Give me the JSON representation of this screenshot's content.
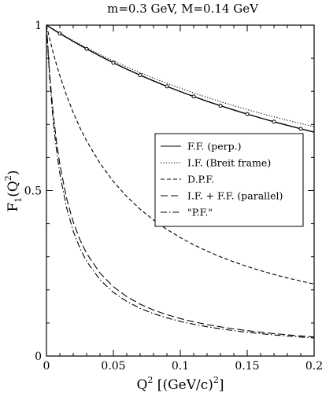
{
  "chart_data": {
    "type": "line",
    "title": "m=0.3 GeV, M=0.14 GeV",
    "xlabel_main": "Q",
    "xlabel_sup": "2",
    "xlabel_rest": " [(GeV/c)",
    "xlabel_sup2": "2",
    "xlabel_end": "]",
    "ylabel_main": "F",
    "ylabel_sub": "1",
    "ylabel_paren_open": "(Q",
    "ylabel_sup": "2",
    "ylabel_paren_close": ")",
    "xlim": [
      0,
      0.2
    ],
    "ylim": [
      0,
      1
    ],
    "x_ticks": [
      {
        "value": 0,
        "label": "0"
      },
      {
        "value": 0.05,
        "label": "0.05"
      },
      {
        "value": 0.1,
        "label": "0.1"
      },
      {
        "value": 0.15,
        "label": "0.15"
      },
      {
        "value": 0.2,
        "label": "0.2"
      }
    ],
    "y_ticks": [
      {
        "value": 0,
        "label": "0"
      },
      {
        "value": 0.5,
        "label": "0.5"
      },
      {
        "value": 1,
        "label": "1"
      }
    ],
    "legend_position": "right-middle",
    "grid": false,
    "x": [
      0,
      0.0025,
      0.005,
      0.0075,
      0.01,
      0.015,
      0.02,
      0.025,
      0.03,
      0.04,
      0.05,
      0.06,
      0.07,
      0.08,
      0.09,
      0.1,
      0.11,
      0.12,
      0.13,
      0.14,
      0.15,
      0.16,
      0.17,
      0.18,
      0.19,
      0.2
    ],
    "series": [
      {
        "name": "F.F. (perp.)",
        "style": "solid",
        "markers": true,
        "values": [
          1.0,
          0.9936,
          0.9873,
          0.981,
          0.9748,
          0.9627,
          0.9509,
          0.9394,
          0.9282,
          0.9067,
          0.8864,
          0.8671,
          0.8488,
          0.8315,
          0.815,
          0.7993,
          0.7844,
          0.7701,
          0.7565,
          0.7436,
          0.7312,
          0.7194,
          0.7081,
          0.6972,
          0.6868,
          0.6768
        ]
      },
      {
        "name": "I.F. (Breit frame)",
        "style": "dotted",
        "markers": false,
        "values": [
          1.0,
          0.9939,
          0.9879,
          0.9819,
          0.9761,
          0.9645,
          0.9533,
          0.9424,
          0.9317,
          0.9113,
          0.892,
          0.8737,
          0.8564,
          0.8399,
          0.8243,
          0.8095,
          0.7953,
          0.7818,
          0.7689,
          0.7566,
          0.7449,
          0.7336,
          0.7229,
          0.7126,
          0.7027,
          0.6932
        ]
      },
      {
        "name": "D.P.F.",
        "style": "short-dash",
        "markers": false,
        "values": [
          1.0,
          0.9568,
          0.9173,
          0.881,
          0.8475,
          0.7876,
          0.7358,
          0.6904,
          0.6503,
          0.5826,
          0.5277,
          0.4822,
          0.4438,
          0.411,
          0.3827,
          0.3581,
          0.3364,
          0.3172,
          0.3,
          0.2846,
          0.2707,
          0.2581,
          0.2466,
          0.2361,
          0.2265,
          0.2176
        ]
      },
      {
        "name": "I.F. + F.F. (parallel)",
        "style": "long-dash",
        "markers": false,
        "values": [
          1.0,
          0.8474,
          0.7346,
          0.6479,
          0.579,
          0.4773,
          0.4054,
          0.3518,
          0.3105,
          0.2507,
          0.2096,
          0.1796,
          0.1569,
          0.1392,
          0.1249,
          0.1133,
          0.1035,
          0.0953,
          0.0883,
          0.0822,
          0.0768,
          0.0721,
          0.0679,
          0.0642,
          0.0608,
          0.0578
        ]
      },
      {
        "name": "\"P.F.\"",
        "style": "dash-dot",
        "markers": false,
        "values": [
          1.0,
          0.833,
          0.7128,
          0.6221,
          0.5512,
          0.4486,
          0.3778,
          0.326,
          0.2865,
          0.2304,
          0.1924,
          0.165,
          0.1443,
          0.1282,
          0.1153,
          0.1048,
          0.096,
          0.0886,
          0.0822,
          0.0768,
          0.072,
          0.0678,
          0.064,
          0.0606,
          0.0575,
          0.0547
        ]
      }
    ]
  }
}
